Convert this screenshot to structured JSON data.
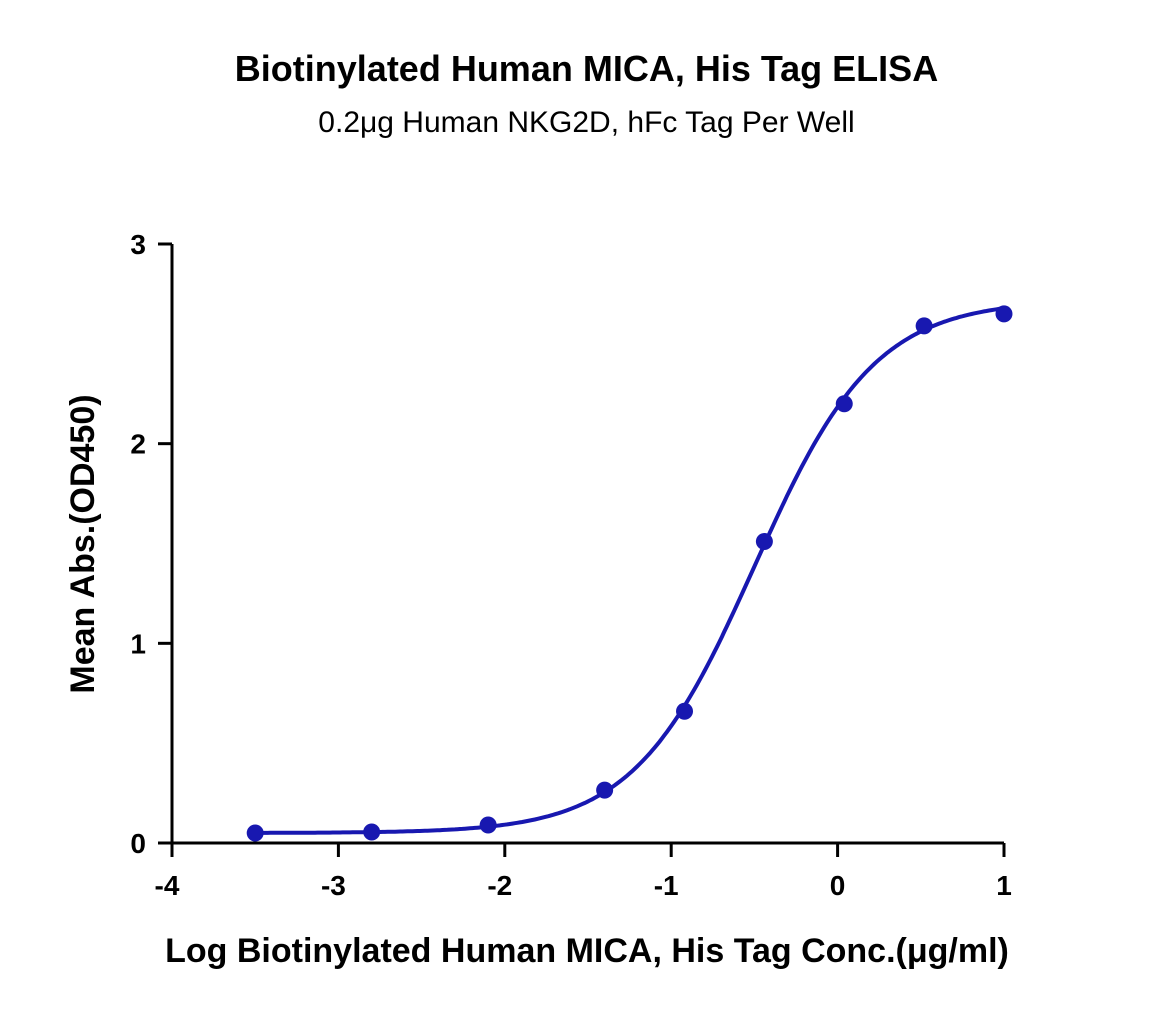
{
  "chart_data": {
    "type": "line",
    "title": "Biotinylated Human MICA, His Tag ELISA",
    "subtitle": "0.2μg Human NKG2D, hFc Tag Per Well",
    "xlabel": "Log Biotinylated Human MICA, His Tag Conc.(μg/ml)",
    "ylabel": "Mean Abs.(OD450)",
    "xlim": [
      -4,
      1
    ],
    "ylim": [
      0,
      3
    ],
    "xticks": [
      "-4",
      "-3",
      "-2",
      "-1",
      "0",
      "1"
    ],
    "yticks": [
      "0",
      "1",
      "2",
      "3"
    ],
    "grid": false,
    "color": "#1818b0",
    "series": [
      {
        "name": "Mean Abs.",
        "x": [
          -3.5,
          -2.8,
          -2.1,
          -1.4,
          -0.92,
          -0.44,
          0.04,
          0.52,
          1.0
        ],
        "y": [
          0.05,
          0.055,
          0.09,
          0.265,
          0.66,
          1.51,
          2.2,
          2.59,
          2.65
        ]
      }
    ],
    "fit": {
      "model": "4PL",
      "bottom": 0.05,
      "top": 2.72,
      "logEC50": -0.5,
      "hill": 1.2
    }
  }
}
